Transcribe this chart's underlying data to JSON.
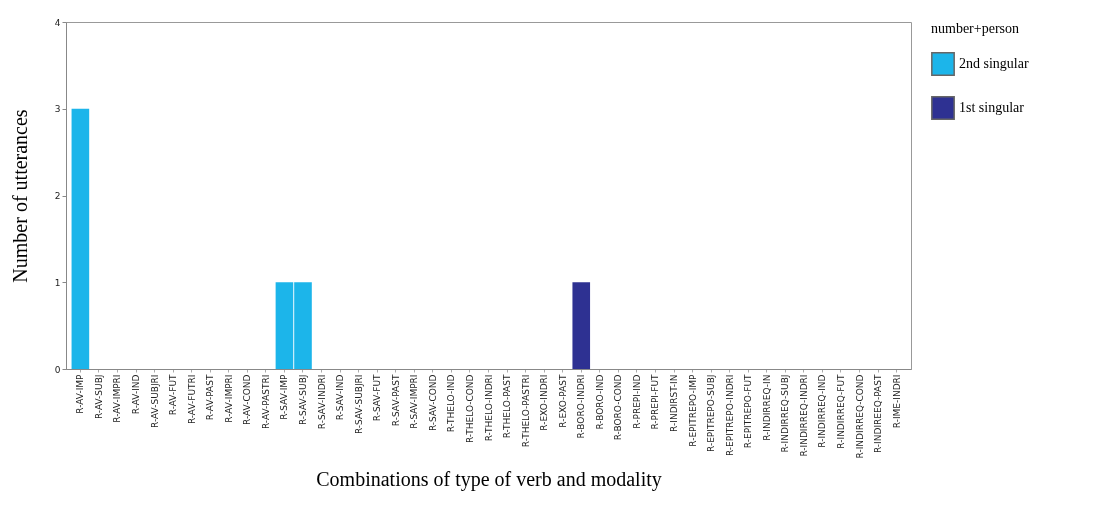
{
  "chart_data": {
    "type": "bar",
    "xlabel": "Combinations of type of verb and modality",
    "ylabel": "Number of utterances",
    "legend_title": "number+person",
    "legend": "top right",
    "grid": false,
    "ylim": [
      0,
      4
    ],
    "yticks": [
      0,
      1,
      2,
      3,
      4
    ],
    "categories": [
      "R-AV-IMP",
      "R-AV-SUBJ",
      "R-AV-IMPRI",
      "R-AV-IND",
      "R-AV-SUBJRI",
      "R-AV-FUT",
      "R-AV-FUTRI",
      "R-AV-PAST",
      "R-AV-IMPRI",
      "R-AV-COND",
      "R-AV-PASTRI",
      "R-SAV-IMP",
      "R-SAV-SUBJ",
      "R-SAV-INDRI",
      "R-SAV-IND",
      "R-SAV-SUBJRI",
      "R-SAV-FUT",
      "R-SAV-PAST",
      "R-SAV-IMPRI",
      "R-SAV-COND",
      "R-THELO-IND",
      "R-THELO-COND",
      "R-THELO-INDRI",
      "R-THELO-PAST",
      "R-THELO-PASTRI",
      "R-EXO-INDRI",
      "R-EXO-PAST",
      "R-BORO-INDRI",
      "R-BORO-IND",
      "R-BORO-COND",
      "R-PREPI-IND",
      "R-PREPI-FUT",
      "R-INDIRST-IN",
      "R-EPITREPO-IMP",
      "R-EPITREPO-SUBJ",
      "R-EPITREPO-INDRI",
      "R-EPITREPO-FUT",
      "R-INDIRREQ-IN",
      "R-INDIRREQ-SUBJ",
      "R-INDIRREQ-INDRI",
      "R-INDIRREQ-IND",
      "R-INDIRREQ-FUT",
      "R-INDIRREQ-COND",
      "R-INDIREEQ-PAST",
      "R-IME-INDRI"
    ],
    "series": [
      {
        "name": "2nd singular",
        "color": "#1cb5ea",
        "values": [
          3,
          null,
          null,
          null,
          null,
          null,
          null,
          null,
          null,
          null,
          null,
          1,
          1,
          null,
          null,
          null,
          null,
          null,
          null,
          null,
          null,
          null,
          null,
          null,
          null,
          null,
          null,
          null,
          null,
          null,
          null,
          null,
          null,
          null,
          null,
          null,
          null,
          null,
          null,
          null,
          null,
          null,
          null,
          null,
          null
        ]
      },
      {
        "name": "1st singular",
        "color": "#2e3192",
        "values": [
          null,
          null,
          null,
          null,
          null,
          null,
          null,
          null,
          null,
          null,
          null,
          null,
          null,
          null,
          null,
          null,
          null,
          null,
          null,
          null,
          null,
          null,
          null,
          null,
          null,
          null,
          null,
          1,
          null,
          null,
          null,
          null,
          null,
          null,
          null,
          null,
          null,
          null,
          null,
          null,
          null,
          null,
          null,
          null,
          null
        ]
      }
    ]
  }
}
